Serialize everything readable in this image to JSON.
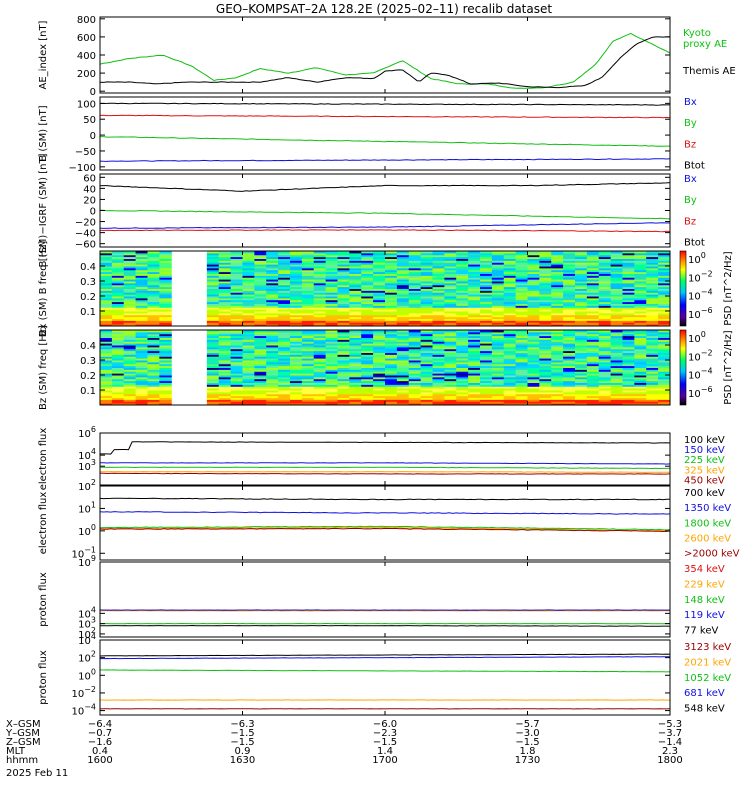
{
  "title": "GEO–KOMPSAT–2A 128.2E (2025–02–11) recalib dataset",
  "colors": {
    "black": "#000000",
    "blue": "#1010e0",
    "green": "#10c010",
    "red": "#e01010",
    "orange": "#ffa500",
    "darkred": "#990000",
    "yellow": "#d4c000"
  },
  "chart_data": [
    {
      "type": "line",
      "ylabel": "AE_index [nT]",
      "ylim": [
        -20,
        820
      ],
      "yticks": [
        "800",
        "600",
        "400",
        "200",
        "0"
      ],
      "ytick_values": [
        800,
        600,
        400,
        200,
        0
      ],
      "x_hours": [
        16.0,
        16.25,
        16.5,
        16.75,
        17.0,
        17.25,
        17.5,
        17.75,
        18.0
      ],
      "series": [
        {
          "name": "Kyoto proxy AE",
          "color": "green",
          "x": [
            16.0,
            16.1,
            16.22,
            16.32,
            16.4,
            16.48,
            16.56,
            16.66,
            16.76,
            16.86,
            16.96,
            17.06,
            17.16,
            17.26,
            17.36,
            17.46,
            17.56,
            17.66,
            17.74,
            17.8,
            17.86,
            17.92,
            18.0
          ],
          "values": [
            300,
            360,
            400,
            280,
            120,
            150,
            250,
            200,
            260,
            180,
            200,
            340,
            140,
            80,
            80,
            30,
            40,
            100,
            300,
            550,
            640,
            550,
            420
          ]
        },
        {
          "name": "Themis AE",
          "color": "black",
          "x": [
            16.0,
            16.1,
            16.2,
            16.3,
            16.38,
            16.46,
            16.56,
            16.66,
            16.76,
            16.86,
            16.96,
            17.0,
            17.06,
            17.12,
            17.16,
            17.22,
            17.3,
            17.4,
            17.5,
            17.6,
            17.7,
            17.76,
            17.82,
            17.88,
            17.94,
            18.0
          ],
          "values": [
            100,
            100,
            80,
            100,
            100,
            100,
            100,
            150,
            100,
            150,
            140,
            220,
            240,
            100,
            200,
            180,
            80,
            90,
            50,
            40,
            60,
            150,
            350,
            520,
            600,
            600
          ]
        }
      ],
      "legend": [
        {
          "lines": [
            "Kyoto",
            "proxy AE"
          ],
          "color": "green"
        },
        {
          "lines": [
            "Themis AE"
          ],
          "color": "black"
        }
      ]
    },
    {
      "type": "line",
      "ylabel": "B (SM) [nT]",
      "ylim": [
        -110,
        120
      ],
      "yticks": [
        "100",
        "50",
        "0",
        "−50",
        "−100"
      ],
      "ytick_values": [
        100,
        50,
        0,
        -50,
        -100
      ],
      "series": [
        {
          "name": "Bx",
          "color": "blue",
          "x": [
            16.0,
            18.0
          ],
          "values": [
            -82,
            -75
          ]
        },
        {
          "name": "By",
          "color": "green",
          "x": [
            16.0,
            18.0
          ],
          "values": [
            -5,
            -35
          ]
        },
        {
          "name": "Bz",
          "color": "red",
          "x": [
            16.0,
            18.0
          ],
          "values": [
            62,
            55
          ]
        },
        {
          "name": "Btot",
          "color": "black",
          "x": [
            16.0,
            18.0
          ],
          "values": [
            100,
            95
          ]
        }
      ],
      "legend": [
        "Bx",
        "By",
        "Bz",
        "Btot"
      ]
    },
    {
      "type": "line",
      "ylabel": "B (SM)−IGRF (SM) [nT]",
      "ylim": [
        -66,
        66
      ],
      "yticks": [
        "60",
        "40",
        "20",
        "0",
        "−20",
        "−40",
        "−60"
      ],
      "ytick_values": [
        60,
        40,
        20,
        0,
        -20,
        -40,
        -60
      ],
      "series": [
        {
          "name": "Bx",
          "color": "blue",
          "x": [
            16.0,
            17.0,
            18.0
          ],
          "values": [
            -32,
            -30,
            -22
          ]
        },
        {
          "name": "By",
          "color": "green",
          "x": [
            16.0,
            17.0,
            18.0
          ],
          "values": [
            0,
            -5,
            -15
          ]
        },
        {
          "name": "Bz",
          "color": "red",
          "x": [
            16.0,
            17.0,
            18.0
          ],
          "values": [
            -36,
            -35,
            -38
          ]
        },
        {
          "name": "Btot",
          "color": "black",
          "x": [
            16.0,
            16.5,
            17.0,
            17.5,
            18.0
          ],
          "values": [
            45,
            35,
            45,
            45,
            50
          ]
        }
      ],
      "legend": [
        "Bx",
        "By",
        "Bz",
        "Btot"
      ]
    },
    {
      "type": "heatmap",
      "ylabel": "Bx (SM) B freq [Hz]",
      "ylim": [
        0.0,
        0.5
      ],
      "yticks": [
        "0.4",
        "0.3",
        "0.2",
        "0.1"
      ],
      "ytick_values": [
        0.4,
        0.3,
        0.2,
        0.1
      ],
      "data_gap_hours": [
        16.28,
        16.36
      ],
      "colorbar": {
        "label": "PSD [nT^2/Hz]",
        "ticks": [
          "10^0",
          "10^−2",
          "10^−4",
          "10^−6"
        ],
        "ticks_top": "10^0"
      }
    },
    {
      "type": "heatmap",
      "ylabel": "Bz (SM) freq [Hz]",
      "ylim": [
        0.0,
        0.5
      ],
      "yticks": [
        "0.4",
        "0.3",
        "0.2",
        "0.1"
      ],
      "ytick_values": [
        0.4,
        0.3,
        0.2,
        0.1
      ],
      "data_gap_hours": [
        16.28,
        16.36
      ],
      "colorbar": {
        "label": "PSD [nT^2/Hz]",
        "ticks": [
          "10^0",
          "10^−2",
          "10^−4",
          "10^−6"
        ]
      }
    },
    {
      "type": "line",
      "log": true,
      "ylabel": "electron flux",
      "ylim_exp": [
        1.3,
        6
      ],
      "yticks_exp": [
        6,
        4,
        3
      ],
      "series": [
        {
          "name": "100 keV",
          "color": "black",
          "x": [
            16.0,
            16.04,
            16.05,
            16.1,
            16.11,
            18.0
          ],
          "values_exp": [
            4.1,
            4.1,
            4.5,
            4.5,
            5.2,
            5.1
          ]
        },
        {
          "name": "150 keV",
          "color": "blue",
          "x": [
            16.0,
            17.0,
            18.0
          ],
          "values_exp": [
            3.3,
            3.3,
            3.2
          ]
        },
        {
          "name": "225 keV",
          "color": "green",
          "x": [
            16.0,
            17.0,
            18.0
          ],
          "values_exp": [
            2.9,
            2.9,
            2.8
          ]
        },
        {
          "name": "325 keV",
          "color": "orange",
          "x": [
            16.0,
            17.0,
            18.0
          ],
          "values_exp": [
            2.5,
            2.5,
            2.45
          ]
        },
        {
          "name": "450 keV",
          "color": "darkred",
          "x": [
            16.0,
            17.0,
            18.0
          ],
          "values_exp": [
            2.35,
            2.3,
            2.3
          ]
        }
      ],
      "legend": [
        "100 keV",
        "150 keV",
        "225 keV",
        "325 keV",
        "450 keV"
      ]
    },
    {
      "type": "line",
      "log": true,
      "ylabel": "electron flux",
      "ylim_exp": [
        -1.3,
        2
      ],
      "yticks_exp": [
        2,
        1,
        0,
        -1
      ],
      "series": [
        {
          "name": "700 keV",
          "color": "black",
          "x": [
            16.0,
            17.0,
            18.0
          ],
          "values_exp": [
            1.45,
            1.4,
            1.4
          ]
        },
        {
          "name": "1350 keV",
          "color": "blue",
          "x": [
            16.0,
            17.0,
            18.0
          ],
          "values_exp": [
            0.85,
            0.8,
            0.75
          ]
        },
        {
          "name": "1800 keV",
          "color": "green",
          "x": [
            16.0,
            17.0,
            18.0
          ],
          "values_exp": [
            0.15,
            0.2,
            0.05
          ]
        },
        {
          "name": "2600 keV",
          "color": "orange",
          "x": [
            16.0,
            17.0,
            18.0
          ],
          "values_exp": [
            0.1,
            0.15,
            0.0
          ]
        },
        {
          "name": ">2000 keV",
          "color": "darkred",
          "x": [
            16.0,
            17.0,
            18.0
          ],
          "values_exp": [
            0.08,
            0.1,
            -0.02
          ]
        }
      ],
      "legend": [
        "700 keV",
        "1350 keV",
        "1800 keV",
        "2600 keV",
        ">2000 keV"
      ]
    },
    {
      "type": "line",
      "log": true,
      "ylabel": "proton flux",
      "ylim_exp": [
        1.7,
        9
      ],
      "yticks_exp": [
        9,
        4,
        3,
        2
      ],
      "series": [
        {
          "name": "354 keV",
          "color": "red",
          "x": [
            16.0,
            18.0
          ],
          "values_exp": [
            4.3,
            4.3
          ]
        },
        {
          "name": "229 keV",
          "color": "orange",
          "x": [
            16.0,
            18.0
          ],
          "values_exp": [
            4.25,
            4.25
          ]
        },
        {
          "name": "148 keV",
          "color": "green",
          "x": [
            16.0,
            17.0,
            18.0
          ],
          "values_exp": [
            3.0,
            3.0,
            3.0
          ]
        },
        {
          "name": "119 keV",
          "color": "blue",
          "x": [
            16.0,
            18.0
          ],
          "values_exp": [
            4.32,
            4.32
          ]
        },
        {
          "name": "77 keV",
          "color": "black",
          "x": [
            16.0,
            17.0,
            18.0
          ],
          "values_exp": [
            2.8,
            2.8,
            2.75
          ]
        }
      ],
      "legend": [
        "354 keV",
        "229 keV",
        "148 keV",
        "119 keV",
        "77 keV"
      ]
    },
    {
      "type": "line",
      "log": true,
      "ylabel": "proton flux",
      "ylim_exp": [
        -4.5,
        4
      ],
      "yticks_exp": [
        4,
        2,
        0,
        -2,
        -4
      ],
      "series": [
        {
          "name": "3123 keV",
          "color": "darkred",
          "x": [
            16.0,
            17.0,
            18.0
          ],
          "values_exp": [
            -3.8,
            -3.8,
            -3.8
          ]
        },
        {
          "name": "2021 keV",
          "color": "orange",
          "x": [
            16.0,
            17.0,
            18.0
          ],
          "values_exp": [
            -2.8,
            -2.8,
            -2.8
          ]
        },
        {
          "name": "1052 keV",
          "color": "green",
          "x": [
            16.0,
            17.0,
            18.0
          ],
          "values_exp": [
            0.6,
            0.5,
            0.4
          ]
        },
        {
          "name": "681 keV",
          "color": "blue",
          "x": [
            16.0,
            17.0,
            18.0
          ],
          "values_exp": [
            1.9,
            2.0,
            2.1
          ]
        },
        {
          "name": "548 keV",
          "color": "black",
          "x": [
            16.0,
            17.0,
            18.0
          ],
          "values_exp": [
            2.2,
            2.3,
            2.4
          ]
        }
      ],
      "legend": [
        "3123 keV",
        "2021 keV",
        "1052 keV",
        "681 keV",
        "548 keV"
      ]
    }
  ],
  "x_axis": {
    "row_labels": [
      "X–GSM",
      "Y–GSM",
      "Z–GSM",
      "MLT",
      "hhmm"
    ],
    "date_label": "2025 Feb 11",
    "columns": [
      [
        "−6.4",
        "−0.7",
        "−1.6",
        "0.4",
        "1600"
      ],
      [
        "−6.3",
        "−1.5",
        "−1.5",
        "0.9",
        "1630"
      ],
      [
        "−6.0",
        "−2.3",
        "−1.5",
        "1.4",
        "1700"
      ],
      [
        "−5.7",
        "−3.0",
        "−1.5",
        "1.8",
        "1730"
      ],
      [
        "−5.3",
        "−3.7",
        "−1.4",
        "2.3",
        "1800"
      ]
    ]
  }
}
